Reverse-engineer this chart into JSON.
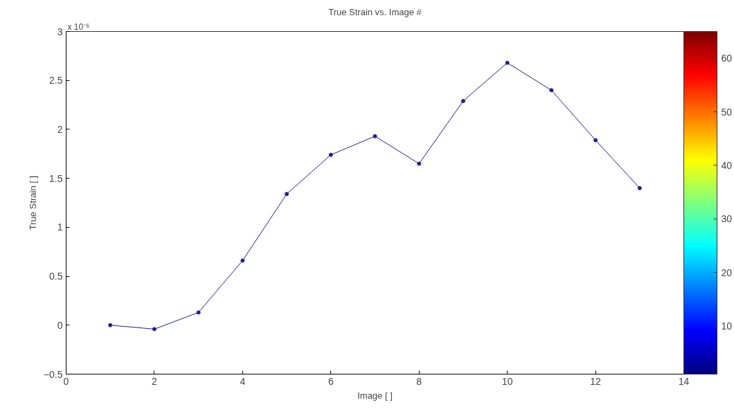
{
  "chart_data": {
    "type": "line",
    "title": "True Strain vs. Image #",
    "xlabel": "Image [ ]",
    "ylabel": "True Strain [ ]",
    "annotations": [
      "x 10⁻⁶"
    ],
    "x": [
      1,
      2,
      3,
      4,
      5,
      6,
      7,
      8,
      9,
      10,
      11,
      12,
      13
    ],
    "series": [
      {
        "color": "#1f1f8f",
        "values": [
          0,
          -0.04,
          0.13,
          0.66,
          1.34,
          1.74,
          1.93,
          1.65,
          2.29,
          2.68,
          2.4,
          1.89,
          1.4
        ]
      }
    ],
    "marker": "circle",
    "line_style": "solid",
    "grid": false,
    "xlim": [
      0,
      14
    ],
    "xticks": [
      0,
      2,
      4,
      6,
      8,
      10,
      12,
      14
    ],
    "ylim": [
      -0.5,
      3
    ],
    "yticks": [
      -0.5,
      0,
      0.5,
      1,
      1.5,
      2,
      2.5,
      3
    ],
    "clim": [
      1,
      65
    ],
    "cticks": [
      10,
      20,
      30,
      40,
      50,
      60
    ]
  }
}
